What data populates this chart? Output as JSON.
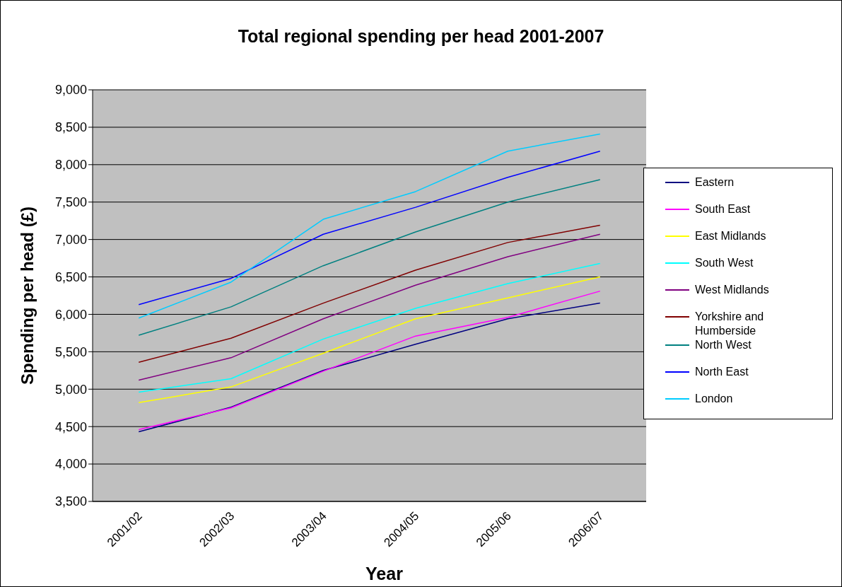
{
  "chart_data": {
    "type": "line",
    "title": "Total regional spending per head 2001-2007",
    "xlabel": "Year",
    "ylabel": "Spending per head (£)",
    "categories": [
      "2001/02",
      "2002/03",
      "2003/04",
      "2004/05",
      "2005/06",
      "2006/07"
    ],
    "series": [
      {
        "name": "Eastern",
        "color": "#000080",
        "values": [
          4430,
          4760,
          5250,
          5600,
          5940,
          6150
        ]
      },
      {
        "name": "South East",
        "color": "#ff00ff",
        "values": [
          4460,
          4750,
          5240,
          5710,
          5960,
          6310
        ]
      },
      {
        "name": "East Midlands",
        "color": "#ffff00",
        "values": [
          4820,
          5030,
          5480,
          5940,
          6220,
          6500
        ]
      },
      {
        "name": "South West",
        "color": "#00ffff",
        "values": [
          4960,
          5140,
          5670,
          6080,
          6410,
          6680
        ]
      },
      {
        "name": "West Midlands",
        "color": "#800080",
        "values": [
          5120,
          5420,
          5940,
          6390,
          6770,
          7070
        ]
      },
      {
        "name": "Yorkshire and Humberside",
        "color": "#800000",
        "values": [
          5360,
          5680,
          6150,
          6590,
          6960,
          7190
        ]
      },
      {
        "name": "North West",
        "color": "#008080",
        "values": [
          5720,
          6100,
          6650,
          7100,
          7500,
          7800
        ]
      },
      {
        "name": "North East",
        "color": "#0000ff",
        "values": [
          6130,
          6480,
          7070,
          7430,
          7830,
          8180
        ]
      },
      {
        "name": "London",
        "color": "#00ccff",
        "values": [
          5950,
          6430,
          7270,
          7640,
          8180,
          8410
        ]
      }
    ],
    "ylim": [
      3500,
      9000
    ],
    "yticks": [
      {
        "value": 3500,
        "label": "3,500"
      },
      {
        "value": 4000,
        "label": "4,000"
      },
      {
        "value": 4500,
        "label": "4,500"
      },
      {
        "value": 5000,
        "label": "5,000"
      },
      {
        "value": 5500,
        "label": "5,500"
      },
      {
        "value": 6000,
        "label": "6,000"
      },
      {
        "value": 6500,
        "label": "6,500"
      },
      {
        "value": 7000,
        "label": "7,000"
      },
      {
        "value": 7500,
        "label": "7,500"
      },
      {
        "value": 8000,
        "label": "8,000"
      },
      {
        "value": 8500,
        "label": "8,500"
      },
      {
        "value": 9000,
        "label": "9,000"
      }
    ],
    "grid": "y",
    "legend": "right",
    "marker": "none",
    "line_style": "solid"
  }
}
